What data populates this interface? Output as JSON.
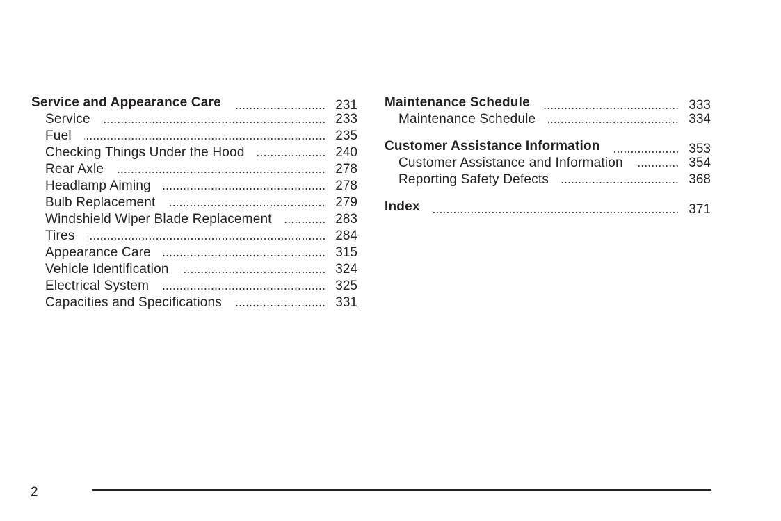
{
  "left_column": {
    "heading": {
      "title": "Service and Appearance Care",
      "page": "231"
    },
    "items": [
      {
        "title": "Service",
        "page": "233"
      },
      {
        "title": "Fuel",
        "page": "235"
      },
      {
        "title": "Checking Things Under the Hood",
        "page": "240"
      },
      {
        "title": "Rear Axle",
        "page": "278"
      },
      {
        "title": "Headlamp Aiming",
        "page": "278"
      },
      {
        "title": "Bulb Replacement",
        "page": "279"
      },
      {
        "title": "Windshield Wiper Blade Replacement",
        "page": "283"
      },
      {
        "title": "Tires",
        "page": "284"
      },
      {
        "title": "Appearance Care",
        "page": "315"
      },
      {
        "title": "Vehicle Identification",
        "page": "324"
      },
      {
        "title": "Electrical System",
        "page": "325"
      },
      {
        "title": "Capacities and Specifications",
        "page": "331"
      }
    ]
  },
  "right_column": {
    "sections": [
      {
        "heading": {
          "title": "Maintenance Schedule",
          "page": "333"
        },
        "items": [
          {
            "title": "Maintenance Schedule",
            "page": "334"
          }
        ]
      },
      {
        "heading": {
          "title": "Customer Assistance Information",
          "page": "353"
        },
        "items": [
          {
            "title": "Customer Assistance and Information",
            "page": "354"
          },
          {
            "title": "Reporting Safety Defects",
            "page": "368"
          }
        ]
      },
      {
        "heading": {
          "title": "Index",
          "page": "371"
        },
        "items": []
      }
    ]
  },
  "footer": {
    "page_number": "2"
  }
}
